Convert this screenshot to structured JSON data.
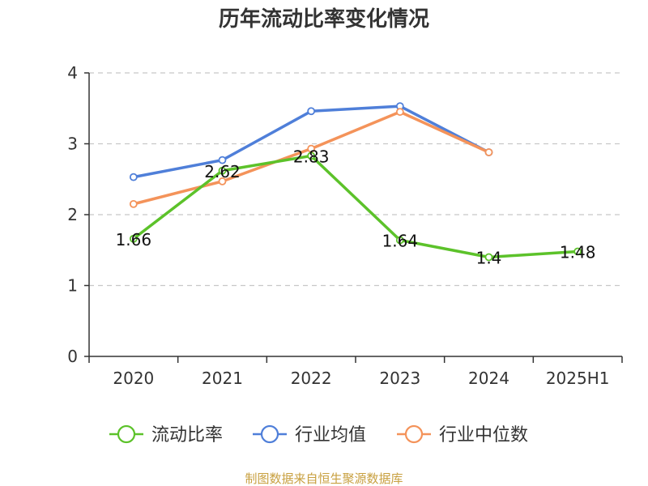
{
  "chart_data": {
    "type": "line",
    "title": "历年流动比率变化情况",
    "categories": [
      "2020",
      "2021",
      "2022",
      "2023",
      "2024",
      "2025H1"
    ],
    "ylim": [
      0,
      4
    ],
    "yticks": [
      "0",
      "1",
      "2",
      "3",
      "4"
    ],
    "grid": true,
    "legend_position": "bottom",
    "series": [
      {
        "name": "流动比率",
        "color": "#5cc22a",
        "values": [
          1.66,
          2.62,
          2.83,
          1.64,
          1.4,
          1.48
        ],
        "labels": [
          "1.66",
          "2.62",
          "2.83",
          "1.64",
          "1.4",
          "1.48"
        ]
      },
      {
        "name": "行业均值",
        "color": "#4f7fd9",
        "values": [
          2.53,
          2.77,
          3.46,
          3.53,
          2.88,
          null
        ]
      },
      {
        "name": "行业中位数",
        "color": "#f4935a",
        "values": [
          2.15,
          2.47,
          2.93,
          3.45,
          2.88,
          null
        ]
      }
    ],
    "source": "制图数据来自恒生聚源数据库"
  }
}
